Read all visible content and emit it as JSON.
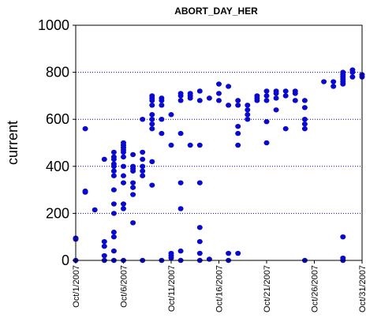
{
  "chart_data": {
    "type": "scatter",
    "title": "ABORT_DAY_HER",
    "xlabel": "",
    "ylabel": "current",
    "xlim": [
      "2007-10-01",
      "2007-10-31"
    ],
    "ylim": [
      0,
      1000
    ],
    "y_ticks": [
      "0",
      "200",
      "400",
      "600",
      "800",
      "1000"
    ],
    "x_ticks": [
      "Oct/1/2007",
      "Oct/6/2007",
      "Oct/11/2007",
      "Oct/16/2007",
      "Oct/21/2007",
      "Oct/26/2007",
      "Oct/31/2007"
    ],
    "grid": "horizontal dotted",
    "colors": {
      "points": "#0a0acc",
      "grid": "#0000cc",
      "axis": "#000000"
    },
    "series": [
      {
        "points": [
          {
            "x": "2007-10-01",
            "y": [
              0,
              90,
              95
            ]
          },
          {
            "x": "2007-10-02",
            "y": [
              290,
              295,
              560
            ]
          },
          {
            "x": "2007-10-03",
            "y": [
              215
            ]
          },
          {
            "x": "2007-10-04",
            "y": [
              0,
              20,
              60,
              80,
              430
            ]
          },
          {
            "x": "2007-10-05",
            "y": [
              0,
              40,
              100,
              120,
              200,
              240,
              300,
              360,
              380,
              400,
              410,
              430,
              440,
              460
            ]
          },
          {
            "x": "2007-10-06",
            "y": [
              0,
              220,
              240,
              330,
              360,
              400,
              440,
              460,
              470,
              480,
              490,
              500
            ]
          },
          {
            "x": "2007-10-07",
            "y": [
              160,
              280,
              310,
              330,
              380,
              390,
              400,
              450
            ]
          },
          {
            "x": "2007-10-08",
            "y": [
              0,
              360,
              380,
              400,
              430,
              460,
              600
            ]
          },
          {
            "x": "2007-10-09",
            "y": [
              320,
              420,
              560,
              580,
              600,
              620,
              660,
              680,
              690,
              700
            ]
          },
          {
            "x": "2007-10-10",
            "y": [
              0,
              540,
              600,
              660,
              680,
              690
            ]
          },
          {
            "x": "2007-10-11",
            "y": [
              10,
              20,
              30,
              490,
              620
            ]
          },
          {
            "x": "2007-10-12",
            "y": [
              0,
              40,
              220,
              330,
              540,
              680,
              700,
              710
            ]
          },
          {
            "x": "2007-10-13",
            "y": [
              490,
              690,
              700,
              710
            ]
          },
          {
            "x": "2007-10-14",
            "y": [
              0,
              30,
              80,
              140,
              330,
              490,
              680,
              720
            ]
          },
          {
            "x": "2007-10-15",
            "y": [
              5,
              690
            ]
          },
          {
            "x": "2007-10-16",
            "y": [
              680,
              710,
              750
            ]
          },
          {
            "x": "2007-10-17",
            "y": [
              0,
              30,
              660,
              740
            ]
          },
          {
            "x": "2007-10-18",
            "y": [
              30,
              490,
              540,
              570,
              660,
              680
            ]
          },
          {
            "x": "2007-10-19",
            "y": [
              600,
              620,
              640,
              660
            ]
          },
          {
            "x": "2007-10-20",
            "y": [
              680,
              690,
              700
            ]
          },
          {
            "x": "2007-10-21",
            "y": [
              500,
              590,
              680,
              700,
              720
            ]
          },
          {
            "x": "2007-10-22",
            "y": [
              640,
              690,
              710,
              720
            ]
          },
          {
            "x": "2007-10-23",
            "y": [
              560,
              700,
              720
            ]
          },
          {
            "x": "2007-10-24",
            "y": [
              680,
              710,
              720
            ]
          },
          {
            "x": "2007-10-25",
            "y": [
              0,
              560,
              580,
              600,
              650,
              680
            ]
          },
          {
            "x": "2007-10-27",
            "y": [
              760
            ]
          },
          {
            "x": "2007-10-28",
            "y": [
              740,
              760
            ]
          },
          {
            "x": "2007-10-29",
            "y": [
              0,
              10,
              100,
              750,
              760,
              770,
              780,
              790,
              800
            ]
          },
          {
            "x": "2007-10-30",
            "y": [
              780,
              800,
              810
            ]
          },
          {
            "x": "2007-10-31",
            "y": [
              780,
              790
            ]
          }
        ]
      }
    ]
  }
}
